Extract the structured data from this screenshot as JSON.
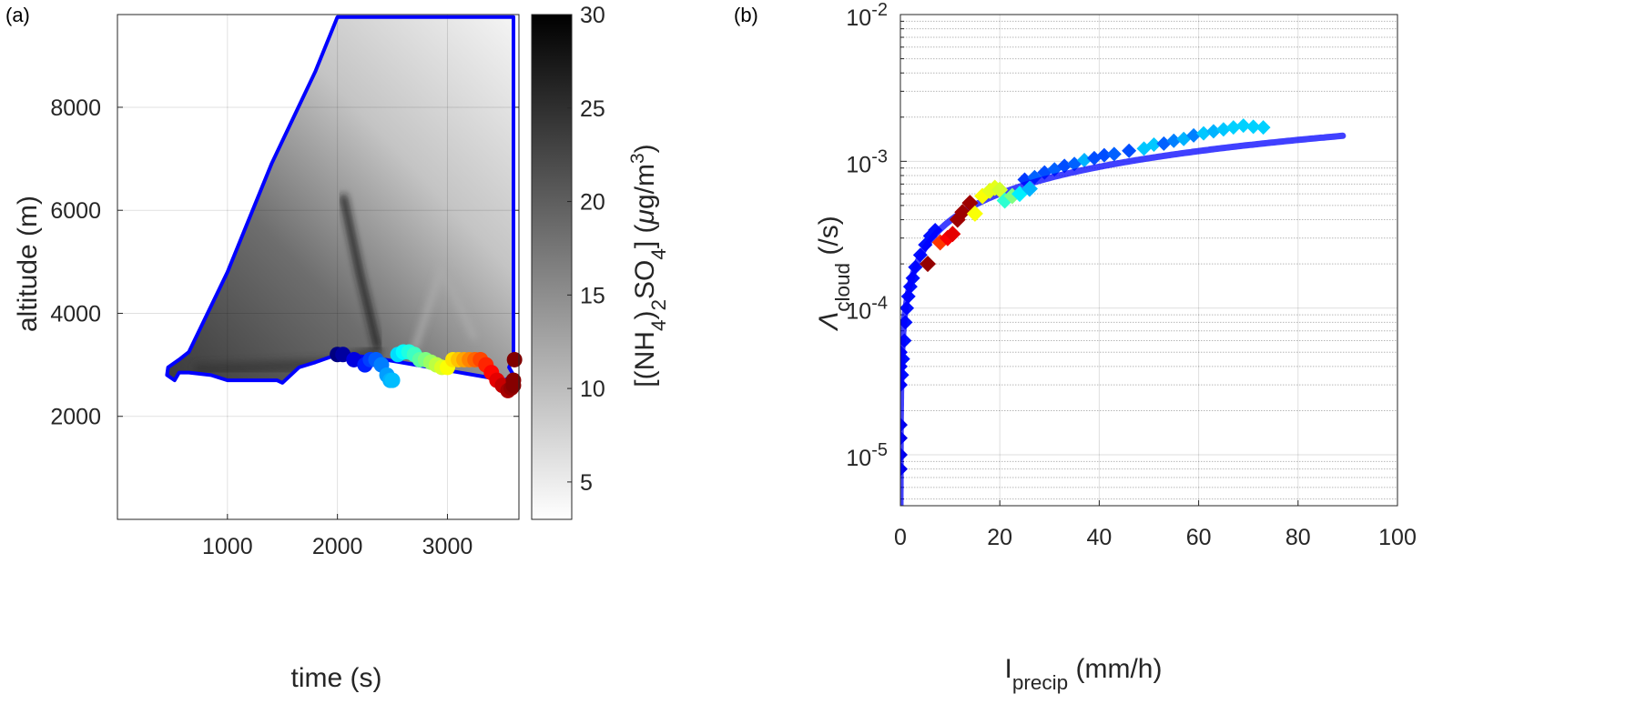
{
  "chart_data": [
    {
      "panel_label": "(a)",
      "type": "heatmap",
      "xlabel": "time (s)",
      "ylabel": "altitude (m)",
      "xlim": [
        0,
        3650
      ],
      "ylim": [
        0,
        9800
      ],
      "xticks": [
        "1000",
        "2000",
        "3000"
      ],
      "xtick_values": [
        1000,
        2000,
        3000
      ],
      "yticks": [
        "2000",
        "4000",
        "6000",
        "8000"
      ],
      "ytick_values": [
        2000,
        4000,
        6000,
        8000
      ],
      "grid": true,
      "colorbar": {
        "label_parts": [
          {
            "t": "[(NH"
          },
          {
            "t": "4",
            "sub": true
          },
          {
            "t": ")"
          },
          {
            "t": "2",
            "sub": true
          },
          {
            "t": "SO"
          },
          {
            "t": "4",
            "sub": true
          },
          {
            "t": "] ("
          },
          {
            "t": "μ",
            "italic": true
          },
          {
            "t": "g/m"
          },
          {
            "t": "3",
            "sup": true
          },
          {
            "t": ")"
          }
        ],
        "clim": [
          3,
          30
        ],
        "ticks": [
          "5",
          "10",
          "15",
          "20",
          "25",
          "30"
        ],
        "tick_values": [
          5,
          10,
          15,
          20,
          25,
          30
        ],
        "colormap": "gray (white=low, black=high)"
      },
      "cloud_boundary": {
        "color": "#0000ff",
        "points": [
          [
            520,
            2700
          ],
          [
            450,
            2800
          ],
          [
            460,
            2950
          ],
          [
            560,
            3100
          ],
          [
            650,
            3250
          ],
          [
            1000,
            4800
          ],
          [
            1400,
            6900
          ],
          [
            1800,
            8700
          ],
          [
            2000,
            9750
          ],
          [
            3600,
            9750
          ],
          [
            3600,
            3150
          ],
          [
            3560,
            2950
          ],
          [
            3600,
            2800
          ],
          [
            3520,
            2700
          ],
          [
            2300,
            3150
          ],
          [
            2000,
            3200
          ],
          [
            1800,
            3050
          ],
          [
            1650,
            2950
          ],
          [
            1500,
            2650
          ],
          [
            1450,
            2700
          ],
          [
            1050,
            2700
          ],
          [
            1000,
            2700
          ],
          [
            850,
            2800
          ],
          [
            650,
            2850
          ],
          [
            560,
            2850
          ],
          [
            520,
            2700
          ]
        ]
      },
      "cloud_base_points": {
        "x": [
          2000,
          2050,
          2150,
          2250,
          2300,
          2350,
          2400,
          2450,
          2480,
          2500,
          2550,
          2600,
          2650,
          2700,
          2750,
          2800,
          2850,
          2900,
          2950,
          3000,
          3050,
          3100,
          3150,
          3200,
          3250,
          3300,
          3350,
          3400,
          3450,
          3500,
          3550,
          3580,
          3600,
          3600,
          3610
        ],
        "y": [
          3200,
          3200,
          3100,
          3000,
          3100,
          3100,
          3000,
          2800,
          2700,
          2700,
          3200,
          3250,
          3250,
          3200,
          3100,
          3100,
          3050,
          3000,
          2950,
          2950,
          3100,
          3100,
          3100,
          3100,
          3100,
          3100,
          3000,
          2850,
          2700,
          2600,
          2500,
          2550,
          2600,
          2700,
          3100
        ],
        "color_by": "time (jet colormap)"
      }
    },
    {
      "panel_label": "(b)",
      "type": "scatter",
      "xlabel_parts": [
        {
          "t": "I"
        },
        {
          "t": "precip",
          "sub": true
        },
        {
          "t": " (mm/h)"
        }
      ],
      "ylabel_parts": [
        {
          "t": "Λ",
          "italic": true
        },
        {
          "t": "cloud",
          "sub": true
        },
        {
          "t": "  (/s)"
        }
      ],
      "xlim": [
        0,
        100
      ],
      "ylim": [
        4.5e-06,
        0.01
      ],
      "yscale": "log",
      "xticks": [
        "0",
        "20",
        "40",
        "60",
        "80",
        "100"
      ],
      "xtick_values": [
        0,
        20,
        40,
        60,
        80,
        100
      ],
      "yticks": [
        {
          "base": "10",
          "exp": "-5",
          "value": 1e-05
        },
        {
          "base": "10",
          "exp": "-4",
          "value": 0.0001
        },
        {
          "base": "10",
          "exp": "-3",
          "value": 0.001
        },
        {
          "base": "10",
          "exp": "-2",
          "value": 0.01
        }
      ],
      "grid": true,
      "minor_grid": true,
      "fit_curve": {
        "form": "a*I^b",
        "a": 9.7e-05,
        "b": 0.609,
        "x_range": [
          0,
          89
        ],
        "color": "#0000ff"
      },
      "blue_diamonds": {
        "x": [
          0,
          0,
          0,
          0,
          0,
          0,
          0,
          0.3,
          0.5,
          0.8,
          1,
          1.3,
          1.6,
          2,
          2.5,
          3,
          4,
          5,
          6,
          7,
          25,
          27,
          29,
          31,
          33,
          35,
          37,
          39,
          41,
          43,
          46,
          49,
          51,
          53,
          55,
          57,
          59,
          61,
          63,
          65,
          67,
          69,
          71,
          73
        ],
        "y": [
          8e-06,
          1e-05,
          1.3e-05,
          1.6e-05,
          3e-05,
          4e-05,
          5e-05,
          3.5e-05,
          4.5e-05,
          6e-05,
          8e-05,
          0.0001,
          0.00012,
          0.00014,
          0.00016,
          0.00019,
          0.00023,
          0.00027,
          0.00031,
          0.00034,
          0.00075,
          0.00078,
          0.00084,
          0.00088,
          0.00093,
          0.00096,
          0.00102,
          0.00105,
          0.0011,
          0.00112,
          0.00118,
          0.00122,
          0.0013,
          0.00132,
          0.00138,
          0.00142,
          0.0015,
          0.00155,
          0.0016,
          0.00165,
          0.0017,
          0.00175,
          0.00172,
          0.0017
        ],
        "c": [
          0.1,
          0.1,
          0.1,
          0.1,
          0.12,
          0.12,
          0.12,
          0.14,
          0.14,
          0.14,
          0.14,
          0.14,
          0.14,
          0.14,
          0.14,
          0.14,
          0.14,
          0.14,
          0.14,
          0.14,
          0.18,
          0.22,
          0.2,
          0.22,
          0.2,
          0.22,
          0.3,
          0.2,
          0.2,
          0.22,
          0.2,
          0.32,
          0.32,
          0.22,
          0.25,
          0.3,
          0.25,
          0.32,
          0.3,
          0.32,
          0.33,
          0.33,
          0.33,
          0.33
        ]
      },
      "colored_diamonds": {
        "x": [
          5.5,
          8,
          9.5,
          10.5,
          11.5,
          12.5,
          14,
          15,
          16.5,
          18,
          19,
          20,
          21,
          22.5,
          24,
          26
        ],
        "y": [
          0.0002,
          0.00028,
          0.0003,
          0.00032,
          0.0004,
          0.00045,
          0.00052,
          0.00044,
          0.00058,
          0.00063,
          0.00066,
          0.00064,
          0.00054,
          0.00058,
          0.0006,
          0.00065
        ],
        "c": [
          0.98,
          0.82,
          0.88,
          0.9,
          0.97,
          0.97,
          0.97,
          0.62,
          0.62,
          0.6,
          0.6,
          0.58,
          0.42,
          0.5,
          0.36,
          0.3
        ]
      }
    }
  ]
}
